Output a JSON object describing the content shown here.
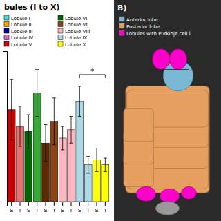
{
  "chart_data": [
    {
      "type": "bar",
      "title": "bules (I to X)",
      "categories": [
        "S",
        "T",
        "S",
        "T",
        "S",
        "T",
        "S",
        "T",
        "S",
        "T",
        "S",
        "T"
      ],
      "series": [
        {
          "name": "Lobule I",
          "color": "#40e0d0",
          "values": [
            null,
            null,
            null,
            null,
            null,
            null,
            null,
            null,
            null,
            null,
            null,
            null
          ]
        },
        {
          "name": "Lobule II",
          "color": "#ffa500",
          "values": [
            null,
            null,
            null,
            null,
            null,
            null,
            null,
            null,
            null,
            null,
            null,
            null
          ]
        },
        {
          "name": "Lobule III",
          "color": "#000099",
          "values": [
            null,
            null,
            null,
            null,
            null,
            null,
            null,
            null,
            null,
            null,
            null,
            null
          ]
        },
        {
          "name": "Lobule IV",
          "color": "#cc66cc",
          "values": [
            null,
            null,
            null,
            null,
            null,
            null,
            null,
            null,
            null,
            null,
            null,
            null
          ]
        },
        {
          "name": "Lobule V",
          "color": "#cc0000",
          "values": [
            55,
            45,
            null,
            null,
            null,
            null,
            null,
            null,
            null,
            null,
            null,
            null
          ],
          "errors": [
            18,
            12,
            null,
            null,
            null,
            null,
            null,
            null,
            null,
            null,
            null,
            null
          ],
          "colors": [
            "#cc0000",
            "#cc00008c",
            null,
            null,
            null,
            null,
            null,
            null,
            null,
            null,
            null,
            null
          ]
        },
        {
          "name": "Lobule VI",
          "color": "#006600",
          "values": [
            null,
            null,
            42,
            65,
            null,
            null,
            null,
            null,
            null,
            null,
            null,
            null
          ],
          "errors": [
            null,
            null,
            10,
            14,
            null,
            null,
            null,
            null,
            null,
            null,
            null,
            null
          ],
          "colors": [
            null,
            null,
            "#006600",
            "#33aa33",
            null,
            null,
            null,
            null,
            null,
            null,
            null,
            null
          ]
        },
        {
          "name": "Lobule VII",
          "color": "#8B4513",
          "values": [
            null,
            null,
            null,
            null,
            35,
            48,
            null,
            null,
            null,
            null,
            null,
            null
          ],
          "errors": [
            null,
            null,
            null,
            null,
            11,
            14,
            null,
            null,
            null,
            null,
            null,
            null
          ],
          "colors": [
            null,
            null,
            null,
            null,
            "#5c2a00",
            "#8B4513",
            null,
            null,
            null,
            null,
            null,
            null
          ]
        },
        {
          "name": "Lobule VIII",
          "color": "#ffb6c1",
          "values": [
            null,
            null,
            null,
            null,
            null,
            null,
            38,
            43,
            null,
            null,
            null,
            null
          ],
          "errors": [
            null,
            null,
            null,
            null,
            null,
            null,
            7,
            8,
            null,
            null,
            null,
            null
          ]
        },
        {
          "name": "Lobule IX",
          "color": "#add8e6",
          "values": [
            null,
            null,
            null,
            null,
            null,
            null,
            null,
            null,
            60,
            22,
            null,
            null
          ],
          "errors": [
            null,
            null,
            null,
            null,
            null,
            null,
            null,
            null,
            9,
            5,
            null,
            null
          ]
        },
        {
          "name": "Lobule X",
          "color": "#ffff00",
          "values": [
            null,
            null,
            null,
            null,
            null,
            null,
            null,
            null,
            null,
            null,
            25,
            22
          ],
          "errors": [
            null,
            null,
            null,
            null,
            null,
            null,
            null,
            null,
            null,
            null,
            7,
            4
          ]
        }
      ],
      "annotations": [
        {
          "text": "*",
          "y": 76,
          "between": [
            8,
            11
          ]
        }
      ],
      "ylim": [
        0,
        90
      ],
      "yticks": [],
      "tick_labels": "x",
      "legend": "top"
    },
    {
      "type": "diagram",
      "title": "B)",
      "color": "#2a2a2a",
      "series": [
        {
          "name": "Anterior lobe",
          "color": "#7ab8d4"
        },
        {
          "name": "Posterior lobe",
          "color": "#e8a060"
        },
        {
          "name": "Lobules with Purkinje cell l",
          "color": "#ff00cc"
        }
      ]
    }
  ]
}
